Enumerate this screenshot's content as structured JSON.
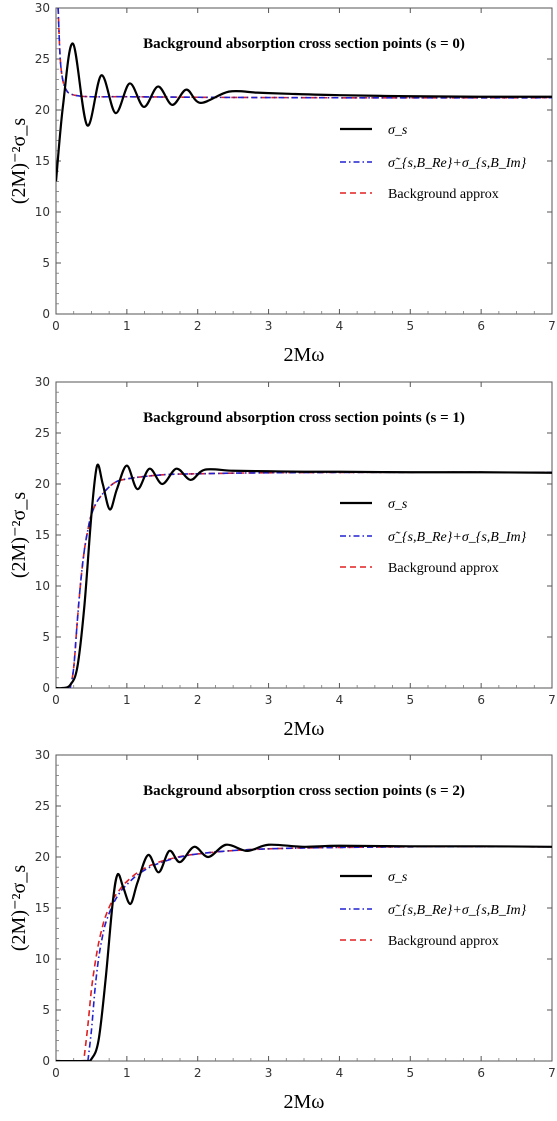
{
  "chart_data": [
    {
      "type": "line",
      "title": "Background absorption cross section points (s = 0)",
      "xlabel": "2Mω",
      "ylabel": "(2M)⁻²σ_s",
      "xlim": [
        0,
        7
      ],
      "ylim": [
        0,
        30
      ],
      "xticks": [
        "0",
        "1",
        "2",
        "3",
        "4",
        "5",
        "6",
        "7"
      ],
      "yticks": [
        "0",
        "5",
        "10",
        "15",
        "20",
        "25",
        "30"
      ],
      "legend": [
        "σ_s",
        "σ̃_{s,B_Re}+σ_{s,B_Im}",
        "Background approx"
      ],
      "legend_position": "middle-right",
      "series": [
        {
          "name": "σ_s",
          "style": "solid",
          "color": "#000000",
          "x": [
            0.0,
            0.1,
            0.24,
            0.44,
            0.64,
            0.84,
            1.04,
            1.24,
            1.44,
            1.64,
            1.84,
            2.04,
            2.44,
            2.84,
            3.24,
            4.0,
            5.0,
            6.0,
            7.0
          ],
          "y": [
            13.0,
            20.5,
            26.5,
            18.5,
            23.4,
            19.7,
            22.6,
            20.3,
            22.3,
            20.5,
            22.0,
            20.7,
            21.8,
            21.7,
            21.6,
            21.45,
            21.35,
            21.3,
            21.3
          ]
        },
        {
          "name": "σ̃_{s,B_Re}+σ_{s,B_Im}",
          "style": "dashdot",
          "color": "#2020d0",
          "x": [
            0.03,
            0.06,
            0.1,
            0.15,
            0.2,
            0.3,
            0.5,
            1.0,
            2.0,
            4.0,
            7.0
          ],
          "y": [
            30.0,
            25.0,
            22.8,
            21.9,
            21.6,
            21.4,
            21.3,
            21.3,
            21.25,
            21.2,
            21.2
          ]
        },
        {
          "name": "Background approx",
          "style": "dashed",
          "color": "#e02020",
          "x": [
            0.03,
            0.06,
            0.1,
            0.15,
            0.2,
            0.3,
            0.5,
            1.0,
            2.0,
            4.0,
            7.0
          ],
          "y": [
            30.0,
            25.0,
            22.8,
            21.9,
            21.6,
            21.4,
            21.3,
            21.3,
            21.25,
            21.2,
            21.2
          ]
        }
      ]
    },
    {
      "type": "line",
      "title": "Background absorption cross section points (s = 1)",
      "xlabel": "2Mω",
      "ylabel": "(2M)⁻²σ_s",
      "xlim": [
        0,
        7
      ],
      "ylim": [
        0,
        30
      ],
      "xticks": [
        "0",
        "1",
        "2",
        "3",
        "4",
        "5",
        "6",
        "7"
      ],
      "yticks": [
        "0",
        "5",
        "10",
        "15",
        "20",
        "25",
        "30"
      ],
      "legend": [
        "σ_s",
        "σ̃_{s,B_Re}+σ_{s,B_Im}",
        "Background approx"
      ],
      "legend_position": "middle-right",
      "series": [
        {
          "name": "σ_s",
          "style": "solid",
          "color": "#000000",
          "x": [
            0.0,
            0.1,
            0.2,
            0.3,
            0.4,
            0.5,
            0.58,
            0.66,
            0.76,
            0.86,
            1.0,
            1.15,
            1.32,
            1.5,
            1.7,
            1.9,
            2.1,
            2.5,
            3.0,
            3.5,
            4.0,
            5.0,
            6.0,
            7.0
          ],
          "y": [
            0.0,
            0.0,
            0.3,
            2.0,
            8.0,
            17.0,
            21.8,
            20.0,
            17.5,
            19.5,
            21.8,
            19.5,
            21.5,
            20.0,
            21.5,
            20.4,
            21.4,
            21.3,
            21.25,
            21.2,
            21.2,
            21.15,
            21.15,
            21.1
          ]
        },
        {
          "name": "σ̃_{s,B_Re}+σ_{s,B_Im}",
          "style": "dashdot",
          "color": "#2020d0",
          "x": [
            0.2,
            0.25,
            0.3,
            0.35,
            0.4,
            0.45,
            0.5,
            0.6,
            0.8,
            1.0,
            1.5,
            2.0,
            3.0,
            5.0,
            7.0
          ],
          "y": [
            0.0,
            2.0,
            6.5,
            10.5,
            13.5,
            15.5,
            17.0,
            18.5,
            20.0,
            20.5,
            20.9,
            21.0,
            21.1,
            21.15,
            21.15
          ]
        },
        {
          "name": "Background approx",
          "style": "dashed",
          "color": "#e02020",
          "x": [
            0.2,
            0.25,
            0.3,
            0.35,
            0.4,
            0.45,
            0.5,
            0.6,
            0.8,
            1.0,
            1.5,
            2.0,
            3.0,
            5.0,
            7.0
          ],
          "y": [
            0.0,
            2.0,
            6.5,
            10.5,
            13.5,
            15.5,
            17.0,
            18.5,
            20.0,
            20.5,
            20.9,
            21.0,
            21.1,
            21.15,
            21.15
          ]
        }
      ]
    },
    {
      "type": "line",
      "title": "Background absorption cross section points (s = 2)",
      "xlabel": "2Mω",
      "ylabel": "(2M)⁻²σ_s",
      "xlim": [
        0,
        7
      ],
      "ylim": [
        0,
        30
      ],
      "xticks": [
        "0",
        "1",
        "2",
        "3",
        "4",
        "5",
        "6",
        "7"
      ],
      "yticks": [
        "0",
        "5",
        "10",
        "15",
        "20",
        "25",
        "30"
      ],
      "legend": [
        "σ_s",
        "σ̃_{s,B_Re}+σ_{s,B_Im}",
        "Background approx"
      ],
      "legend_position": "middle-right",
      "series": [
        {
          "name": "σ_s",
          "style": "solid",
          "color": "#000000",
          "x": [
            0.0,
            0.4,
            0.5,
            0.6,
            0.7,
            0.8,
            0.87,
            0.95,
            1.05,
            1.15,
            1.3,
            1.45,
            1.6,
            1.75,
            1.95,
            2.15,
            2.4,
            2.7,
            3.0,
            3.5,
            4.0,
            5.0,
            6.0,
            7.0
          ],
          "y": [
            0.0,
            0.0,
            0.2,
            2.0,
            8.0,
            15.5,
            18.3,
            17.0,
            15.4,
            17.5,
            20.2,
            18.5,
            20.6,
            19.5,
            21.0,
            20.0,
            21.2,
            20.6,
            21.2,
            21.0,
            21.1,
            21.05,
            21.05,
            21.0
          ]
        },
        {
          "name": "σ̃_{s,B_Re}+σ_{s,B_Im}",
          "style": "dashdot",
          "color": "#2020d0",
          "x": [
            0.45,
            0.5,
            0.55,
            0.6,
            0.65,
            0.7,
            0.8,
            0.9,
            1.0,
            1.2,
            1.5,
            2.0,
            3.0,
            5.0,
            7.0
          ],
          "y": [
            0.0,
            3.0,
            7.0,
            10.0,
            12.0,
            13.5,
            15.3,
            16.5,
            17.3,
            18.5,
            19.5,
            20.3,
            20.8,
            21.0,
            21.0
          ]
        },
        {
          "name": "Background approx",
          "style": "dashed",
          "color": "#e02020",
          "x": [
            0.4,
            0.45,
            0.5,
            0.55,
            0.6,
            0.65,
            0.7,
            0.8,
            0.9,
            1.0,
            1.2,
            1.5,
            2.0,
            3.0,
            5.0,
            7.0
          ],
          "y": [
            0.5,
            3.5,
            7.0,
            9.5,
            11.5,
            13.0,
            14.2,
            15.8,
            16.8,
            17.6,
            18.7,
            19.6,
            20.3,
            20.8,
            21.0,
            21.0
          ]
        }
      ]
    }
  ]
}
